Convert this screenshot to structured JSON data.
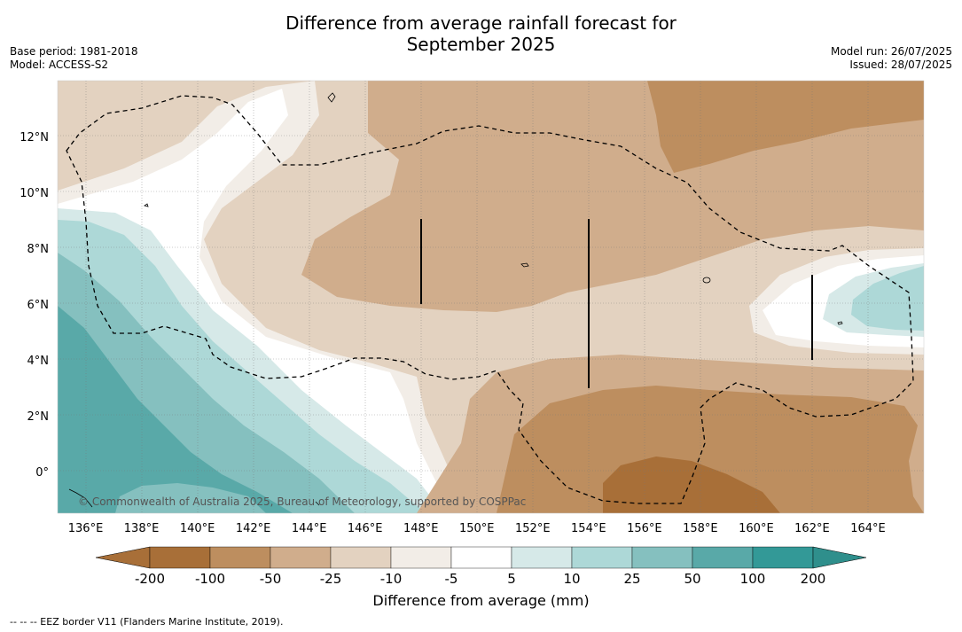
{
  "title_line1": "Difference from average rainfall forecast for",
  "title_line2": "September 2025",
  "meta": {
    "base_period": "Base period: 1981-2018",
    "model": "Model: ACCESS-S2",
    "model_run": "Model run: 26/07/2025",
    "issued": "Issued: 28/07/2025"
  },
  "copyright": "© Commonwealth of Australia 2025, Bureau of Meteorology, supported by COSPPac",
  "footnote": "--  --  -- EEZ border V11 (Flanders Marine Institute, 2019).",
  "map": {
    "lon_labels": [
      "136°E",
      "138°E",
      "140°E",
      "142°E",
      "144°E",
      "146°E",
      "148°E",
      "150°E",
      "152°E",
      "154°E",
      "156°E",
      "158°E",
      "160°E",
      "162°E",
      "164°E"
    ],
    "lat_labels": [
      "12°N",
      "10°N",
      "8°N",
      "6°N",
      "4°N",
      "2°N",
      "0°"
    ],
    "lon_values": [
      136,
      138,
      140,
      142,
      144,
      146,
      148,
      150,
      152,
      154,
      156,
      158,
      160,
      162,
      164
    ],
    "lat_values": [
      12,
      10,
      8,
      6,
      4,
      2,
      0
    ],
    "lon_range": [
      135,
      166
    ],
    "lat_range": [
      -1.5,
      14
    ]
  },
  "colorbar": {
    "title": "Difference from average (mm)",
    "tick_labels": [
      "-200",
      "-100",
      "-50",
      "-25",
      "-10",
      "-5",
      "5",
      "10",
      "25",
      "50",
      "100",
      "200"
    ],
    "colors": [
      "#a86f38",
      "#bd8e5f",
      "#d0ad8c",
      "#e3d2c0",
      "#f2ede7",
      "#ffffff",
      "#d6e9e8",
      "#add8d7",
      "#85c0bf",
      "#59a9a8",
      "#339997"
    ],
    "under_color": "#a86f38",
    "over_color": "#2f8f8c"
  }
}
